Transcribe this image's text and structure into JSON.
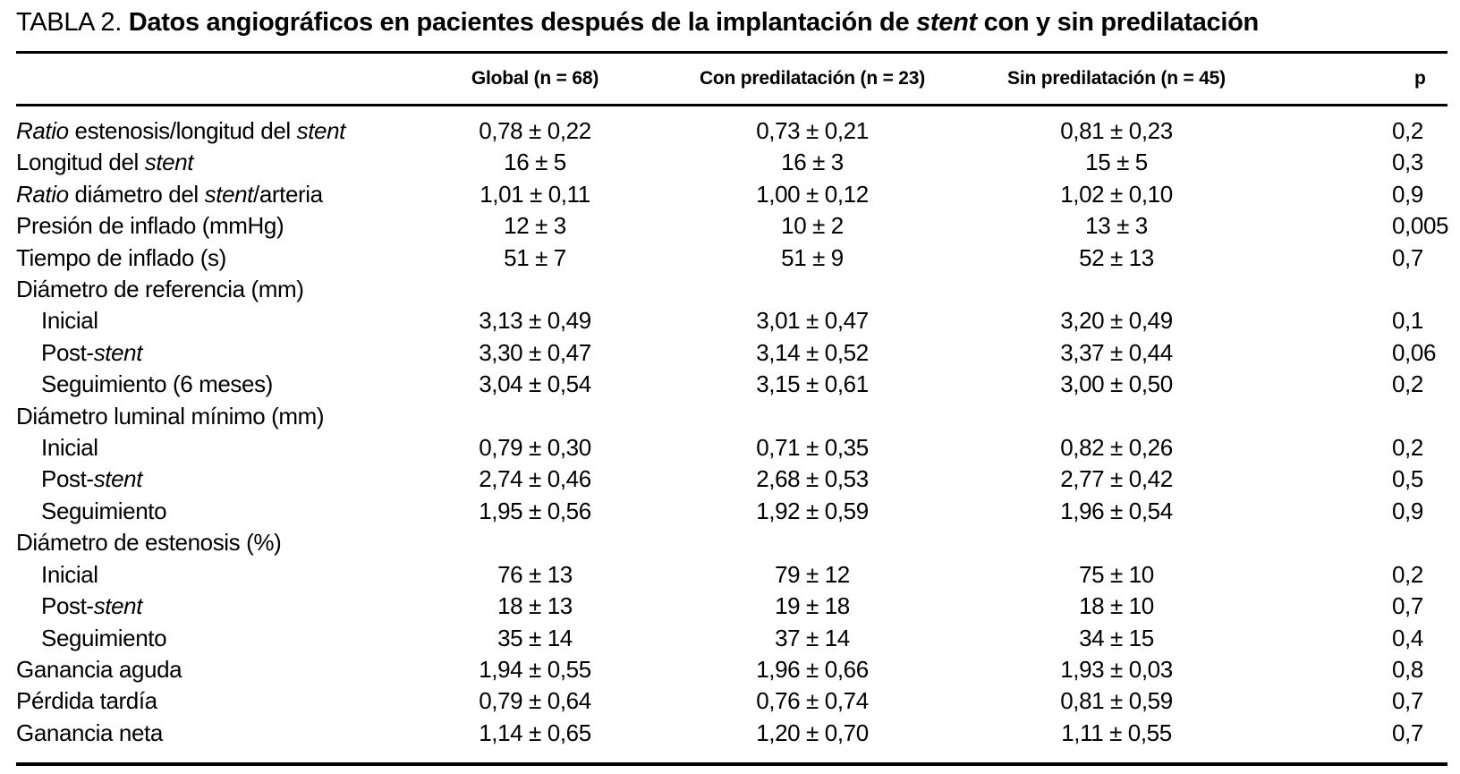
{
  "page": {
    "background_color": "#ffffff",
    "text_color": "#000000"
  },
  "title": {
    "tag": "TABLA 2. ",
    "bold_part_1": "Datos angiográficos en pacientes después de la implantación de ",
    "italic_word": "stent",
    "bold_part_2": " con y sin predilatación"
  },
  "table": {
    "columns": [
      "",
      "Global (n = 68)",
      "Con predilatación (n = 23)",
      "Sin predilatación (n = 45)",
      "p"
    ],
    "rows": [
      {
        "label": "*Ratio* estenosis/longitud del *stent*",
        "indent": false,
        "values": [
          "0,78 ± 0,22",
          "0,73 ± 0,21",
          "0,81 ± 0,23",
          "0,2"
        ]
      },
      {
        "label": "Longitud del *stent*",
        "indent": false,
        "values": [
          "16 ± 5",
          "16 ± 3",
          "15 ± 5",
          "0,3"
        ]
      },
      {
        "label": "*Ratio* diámetro del *stent*/arteria",
        "indent": false,
        "values": [
          "1,01 ± 0,11",
          "1,00 ± 0,12",
          "1,02 ± 0,10",
          "0,9"
        ]
      },
      {
        "label": "Presión de inflado (mmHg)",
        "indent": false,
        "values": [
          "12 ± 3",
          "10 ± 2",
          "13 ± 3",
          "0,005"
        ]
      },
      {
        "label": "Tiempo de inflado (s)",
        "indent": false,
        "values": [
          "51 ± 7",
          "51 ± 9",
          "52 ± 13",
          "0,7"
        ]
      },
      {
        "label": "Diámetro de referencia (mm)",
        "indent": false,
        "values": [
          "",
          "",
          "",
          ""
        ]
      },
      {
        "label": "Inicial",
        "indent": true,
        "values": [
          "3,13 ± 0,49",
          "3,01 ± 0,47",
          "3,20 ± 0,49",
          "0,1"
        ]
      },
      {
        "label": "Post-*stent*",
        "indent": true,
        "values": [
          "3,30 ± 0,47",
          "3,14 ± 0,52",
          "3,37 ± 0,44",
          "0,06"
        ]
      },
      {
        "label": "Seguimiento (6 meses)",
        "indent": true,
        "values": [
          "3,04 ± 0,54",
          "3,15 ± 0,61",
          "3,00 ± 0,50",
          "0,2"
        ]
      },
      {
        "label": "Diámetro luminal mínimo (mm)",
        "indent": false,
        "values": [
          "",
          "",
          "",
          ""
        ]
      },
      {
        "label": "Inicial",
        "indent": true,
        "values": [
          "0,79 ± 0,30",
          "0,71 ± 0,35",
          "0,82 ± 0,26",
          "0,2"
        ]
      },
      {
        "label": "Post-*stent*",
        "indent": true,
        "values": [
          "2,74 ± 0,46",
          "2,68 ± 0,53",
          "2,77 ± 0,42",
          "0,5"
        ]
      },
      {
        "label": "Seguimiento",
        "indent": true,
        "values": [
          "1,95 ± 0,56",
          "1,92 ± 0,59",
          "1,96 ± 0,54",
          "0,9"
        ]
      },
      {
        "label": "Diámetro de estenosis (%)",
        "indent": false,
        "values": [
          "",
          "",
          "",
          ""
        ]
      },
      {
        "label": "Inicial",
        "indent": true,
        "values": [
          "76 ± 13",
          "79 ± 12",
          "75 ± 10",
          "0,2"
        ]
      },
      {
        "label": "Post-*stent*",
        "indent": true,
        "values": [
          "18 ± 13",
          "19 ± 18",
          "18 ± 10",
          "0,7"
        ]
      },
      {
        "label": "Seguimiento",
        "indent": true,
        "values": [
          "35 ± 14",
          "37 ± 14",
          "34 ± 15",
          "0,4"
        ]
      },
      {
        "label": "Ganancia aguda",
        "indent": false,
        "values": [
          "1,94 ± 0,55",
          "1,96 ± 0,66",
          "1,93 ± 0,03",
          "0,8"
        ]
      },
      {
        "label": "Pérdida tardía",
        "indent": false,
        "values": [
          "0,79 ± 0,64",
          "0,76 ± 0,74",
          "0,81 ± 0,59",
          "0,7"
        ]
      },
      {
        "label": "Ganancia neta",
        "indent": false,
        "values": [
          "1,14 ± 0,65",
          "1,20 ± 0,70",
          "1,11 ± 0,55",
          "0,7"
        ]
      }
    ]
  }
}
